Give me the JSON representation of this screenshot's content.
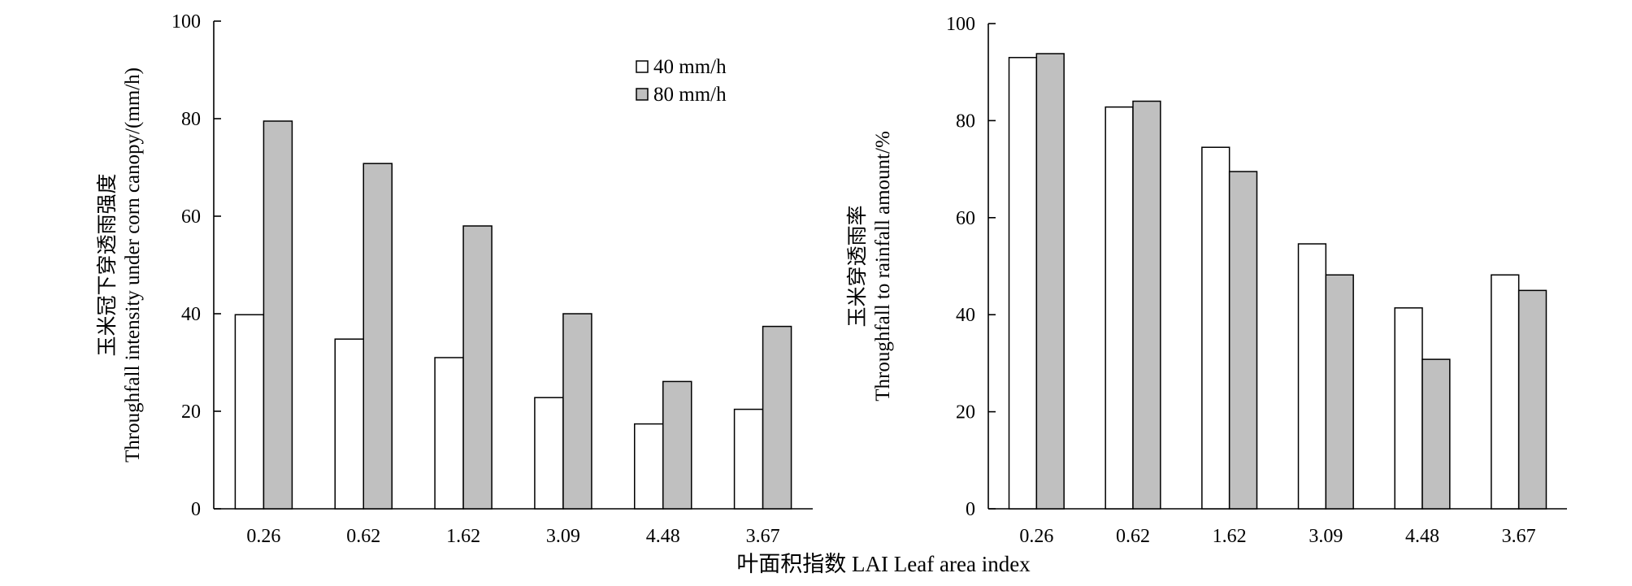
{
  "x_label": "叶面积指数 LAI  Leaf area index",
  "chart_data": [
    {
      "type": "bar",
      "categories": [
        "0.26",
        "0.62",
        "1.62",
        "3.09",
        "4.48",
        "3.67"
      ],
      "series": [
        {
          "name": "40 mm/h",
          "color": "#ffffff",
          "values": [
            39.8,
            34.8,
            31.0,
            22.8,
            17.4,
            20.4
          ]
        },
        {
          "name": "80 mm/h",
          "color": "#c0c0c0",
          "values": [
            79.5,
            70.8,
            58.0,
            40.0,
            26.1,
            37.4
          ]
        }
      ],
      "ylabel_cn": "玉米冠下穿透雨强度",
      "ylabel_en": "Throughfall intensity under corn canopy/(mm/h)",
      "ylim": [
        0,
        100
      ],
      "yticks": [
        "0",
        "20",
        "40",
        "60",
        "80",
        "100"
      ],
      "legend": "top-right"
    },
    {
      "type": "bar",
      "categories": [
        "0.26",
        "0.62",
        "1.62",
        "3.09",
        "4.48",
        "3.67"
      ],
      "series": [
        {
          "name": "40 mm/h",
          "color": "#ffffff",
          "values": [
            93.0,
            82.8,
            74.5,
            54.6,
            41.4,
            48.2
          ]
        },
        {
          "name": "80 mm/h",
          "color": "#c0c0c0",
          "values": [
            93.8,
            84.0,
            69.5,
            48.2,
            30.8,
            45.0
          ]
        }
      ],
      "ylabel_cn": "玉米穿透雨率",
      "ylabel_en": "Throughfall to rainfall amount/%",
      "ylim": [
        0,
        100
      ],
      "yticks": [
        "0",
        "20",
        "40",
        "60",
        "80",
        "100"
      ]
    }
  ]
}
